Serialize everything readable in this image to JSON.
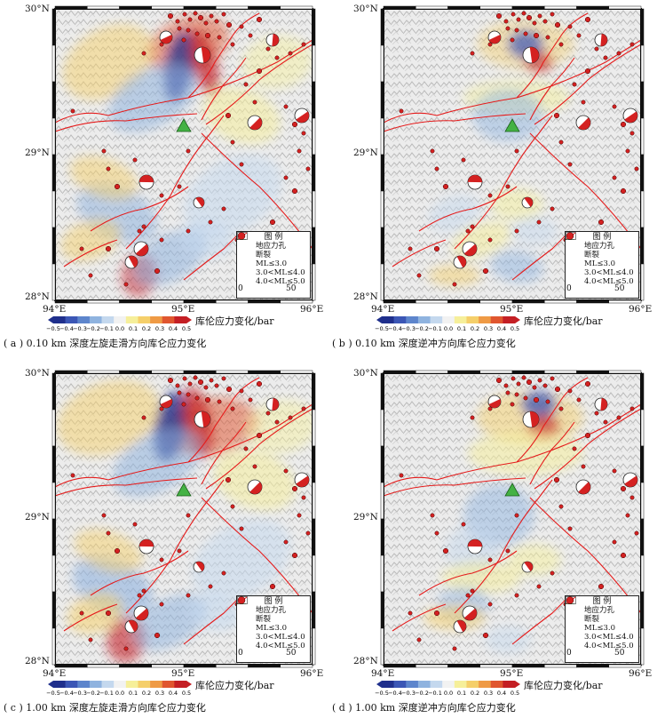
{
  "lat_labels": [
    "30°N",
    "29°N",
    "28°N"
  ],
  "lon_labels": [
    "94°E",
    "95°E",
    "96°E"
  ],
  "colorbar": {
    "title": "库伦应力变化/bar",
    "ticks": [
      "−0.5",
      "−0.4",
      "−0.3",
      "−0.2",
      "−0.1",
      "0.0",
      "0.1",
      "0.2",
      "0.3",
      "0.4",
      "0.5"
    ],
    "colors": [
      "#1f2f8c",
      "#3b56b5",
      "#5d85cc",
      "#8fb3df",
      "#c4d8ee",
      "#f2f2f2",
      "#f6ef9a",
      "#f5cf6a",
      "#ef9a45",
      "#e0562f",
      "#c41f24"
    ]
  },
  "legend": {
    "title": "图 例",
    "station": "地应力孔",
    "fault": "断裂",
    "mag1": "ML≤3.0",
    "mag2": "3.0<ML≤4.0",
    "mag3": "4.0<ML≤5.0",
    "scale_0": "0",
    "scale_50": "50"
  },
  "panels": [
    {
      "caption": "( a ) 0.10 km 深度左旋走滑方向库仑应力变化"
    },
    {
      "caption": "( b ) 0.10 km 深度逆冲方向库仑应力变化"
    },
    {
      "caption": "( c ) 1.00 km 深度左旋走滑方向库仑应力变化"
    },
    {
      "caption": "( d ) 1.00 km 深度逆冲方向库仑应力变化"
    }
  ],
  "colors": {
    "fault": "#e51b1b",
    "quake_fill": "#d42121",
    "station": "#44b244",
    "positive": "#d93a2b",
    "negative": "#3057b0"
  }
}
